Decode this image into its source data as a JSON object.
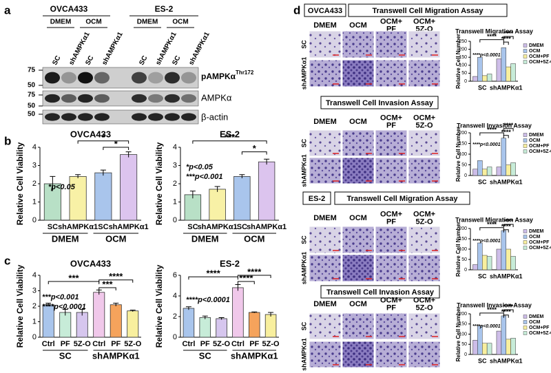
{
  "panel_letters": [
    "a",
    "b",
    "c",
    "d"
  ],
  "blot": {
    "cell_lines": [
      "OVCA433",
      "ES-2"
    ],
    "media": [
      "DMEM",
      "OCM",
      "DMEM",
      "OCM"
    ],
    "lanes": [
      "SC",
      "shAMPKα1",
      "SC",
      "shAMPKα1",
      "SC",
      "shAMPKα1",
      "SC",
      "shAMPKα1"
    ],
    "markers": [
      75,
      50,
      75,
      50,
      50
    ],
    "proteins": [
      {
        "name": "pAMPKα",
        "superscript": "Thr172"
      },
      {
        "name": "AMPKα"
      },
      {
        "name": "β-actin"
      }
    ]
  },
  "assays": {
    "sections": [
      {
        "cell_line": "OVCA433",
        "title": "Transwell Cell Migration Assay"
      },
      {
        "title": "Transwell Cell Invasion Assay"
      },
      {
        "cell_line": "ES-2",
        "title": "Transwell Cell Migration Assay"
      },
      {
        "title": "Transwell Cell Invasion Assay"
      }
    ],
    "columns": [
      [
        "DMEM"
      ],
      [
        "OCM"
      ],
      [
        "OCM+",
        "PF"
      ],
      [
        "OCM+",
        "5Z-O"
      ]
    ],
    "rows": [
      "SC",
      "shAMPKα1"
    ]
  },
  "chart_data": [
    {
      "type": "bar",
      "title": "OVCA433",
      "y_label": "Relative Cell Viability",
      "categories": [
        "SC",
        "shAMPKα1",
        "SC",
        "shAMPKα1"
      ],
      "groups": [
        "DMEM",
        "OCM"
      ],
      "values": [
        2.0,
        2.4,
        2.6,
        3.6
      ],
      "errors": [
        0.4,
        0.1,
        0.15,
        0.15
      ],
      "colors": [
        "#b8e0c6",
        "#f8f1a6",
        "#a9c5ec",
        "#dcc4ee"
      ],
      "ylim": [
        0,
        4
      ],
      "yticks": [
        0,
        1,
        2,
        3,
        4
      ],
      "annotations": [
        "*p<0.05"
      ],
      "significance": [
        "*",
        "*"
      ]
    },
    {
      "type": "bar",
      "title": "ES-2",
      "y_label": "Relative Cell Viability",
      "categories": [
        "SC",
        "shAMPKα1",
        "SC",
        "shAMPKα1"
      ],
      "groups": [
        "DMEM",
        "OCM"
      ],
      "values": [
        1.4,
        1.7,
        2.4,
        3.2
      ],
      "errors": [
        0.2,
        0.15,
        0.1,
        0.15
      ],
      "colors": [
        "#b8e0c6",
        "#f8f1a6",
        "#a9c5ec",
        "#dcc4ee"
      ],
      "ylim": [
        0,
        4
      ],
      "yticks": [
        0,
        1,
        2,
        3,
        4
      ],
      "annotations": [
        "*p<0.05",
        "***p<0.001"
      ],
      "significance": [
        "***",
        "*"
      ]
    },
    {
      "type": "bar",
      "title": "OVCA433",
      "y_label": "Relative Cell Viability",
      "categories": [
        "Ctrl",
        "PF",
        "5Z-O",
        "Ctrl",
        "PF",
        "5Z-O"
      ],
      "groups": [
        "SC",
        "shAMPKα1"
      ],
      "values": [
        2.1,
        1.6,
        1.6,
        2.9,
        2.1,
        1.7
      ],
      "errors": [
        0.1,
        0.2,
        0.2,
        0.15,
        0.1,
        0.05
      ],
      "colors": [
        "#a9c5ec",
        "#c7ecd8",
        "#d6c6ee",
        "#f0c8ea",
        "#f5a35c",
        "#f8ef9e"
      ],
      "ylim": [
        0,
        4
      ],
      "yticks": [
        0,
        1,
        2,
        3,
        4
      ],
      "annotations": [
        "***p<0.001",
        "****p<0.0001"
      ],
      "significance": [
        "***",
        "****",
        "***"
      ]
    },
    {
      "type": "bar",
      "title": "ES-2",
      "y_label": "Relative Cell Viability",
      "categories": [
        "Ctrl",
        "PF",
        "5Z-O",
        "Ctrl",
        "PF",
        "5Z-O"
      ],
      "groups": [
        "SC",
        "shAMPKα1"
      ],
      "values": [
        2.8,
        1.9,
        1.8,
        4.8,
        2.4,
        2.2
      ],
      "errors": [
        0.15,
        0.15,
        0.1,
        0.3,
        0.05,
        0.2
      ],
      "colors": [
        "#a9c5ec",
        "#c7ecd8",
        "#d6c6ee",
        "#f0c8ea",
        "#f5a35c",
        "#f8ef9e"
      ],
      "ylim": [
        0,
        6
      ],
      "yticks": [
        0,
        2,
        4,
        6
      ],
      "annotations": [
        "****p<0.0001"
      ],
      "significance": [
        "****",
        "****",
        "****"
      ]
    },
    {
      "type": "grouped_bar",
      "title": "Transwell Migration Assay",
      "y_label": "Relative Cell Number",
      "categories": [
        "SC",
        "shAMPKα1"
      ],
      "series": [
        {
          "name": "DMEM",
          "color": "#cdbde8",
          "values": [
            30,
            140
          ]
        },
        {
          "name": "OCM",
          "color": "#a9c5ec",
          "values": [
            150,
            210
          ]
        },
        {
          "name": "OCM+PF",
          "color": "#f8ef9e",
          "values": [
            35,
            90
          ]
        },
        {
          "name": "OCM+5Z-O",
          "color": "#c7ecd8",
          "values": [
            45,
            110
          ]
        }
      ],
      "ylim": [
        0,
        250
      ],
      "yticks": [
        0,
        50,
        100,
        150,
        200,
        250
      ],
      "annotations": [
        "****p<0.0001"
      ],
      "significance": [
        "****",
        "****",
        "****"
      ]
    },
    {
      "type": "grouped_bar",
      "title": "Transwell Invasion Assay",
      "y_label": "Relative Cell Number",
      "categories": [
        "SC",
        "shAMPKα1"
      ],
      "series": [
        {
          "name": "DMEM",
          "color": "#cdbde8",
          "values": [
            30,
            40
          ]
        },
        {
          "name": "OCM",
          "color": "#a9c5ec",
          "values": [
            70,
            175
          ]
        },
        {
          "name": "OCM+PF",
          "color": "#f8ef9e",
          "values": [
            30,
            50
          ]
        },
        {
          "name": "OCM+5Z-O",
          "color": "#c7ecd8",
          "values": [
            40,
            60
          ]
        }
      ],
      "ylim": [
        0,
        200
      ],
      "yticks": [
        0,
        50,
        100,
        150,
        200
      ],
      "annotations": [
        "****p<0.0001"
      ],
      "significance": [
        "****",
        "****",
        "****"
      ]
    },
    {
      "type": "grouped_bar",
      "title": "Transwell Migration Assay",
      "y_label": "Relative Cell Number",
      "categories": [
        "SC",
        "shAMPKα1"
      ],
      "series": [
        {
          "name": "DMEM",
          "color": "#cdbde8",
          "values": [
            25,
            100
          ]
        },
        {
          "name": "OCM",
          "color": "#a9c5ec",
          "values": [
            130,
            190
          ]
        },
        {
          "name": "OCM+PF",
          "color": "#f8ef9e",
          "values": [
            70,
            100
          ]
        },
        {
          "name": "OCM+5Z-O",
          "color": "#c7ecd8",
          "values": [
            65,
            65
          ]
        }
      ],
      "ylim": [
        0,
        200
      ],
      "yticks": [
        0,
        50,
        100,
        150,
        200
      ],
      "annotations": [
        "****p<0.0001"
      ],
      "significance": [
        "****",
        "****",
        "****"
      ]
    },
    {
      "type": "grouped_bar",
      "title": "Transwell Invasion Assay",
      "y_label": "Relative Cell Number",
      "categories": [
        "SC",
        "shAMPKα1"
      ],
      "series": [
        {
          "name": "DMEM",
          "color": "#cdbde8",
          "values": [
            70,
            115
          ]
        },
        {
          "name": "OCM",
          "color": "#a9c5ec",
          "values": [
            140,
            190
          ]
        },
        {
          "name": "OCM+PF",
          "color": "#f8ef9e",
          "values": [
            55,
            75
          ]
        },
        {
          "name": "OCM+5Z-O",
          "color": "#c7ecd8",
          "values": [
            55,
            80
          ]
        }
      ],
      "ylim": [
        0,
        200
      ],
      "yticks": [
        0,
        50,
        100,
        150,
        200
      ],
      "annotations": [
        "****p<0.0001"
      ],
      "significance": [
        "****",
        "****",
        "****"
      ]
    }
  ]
}
